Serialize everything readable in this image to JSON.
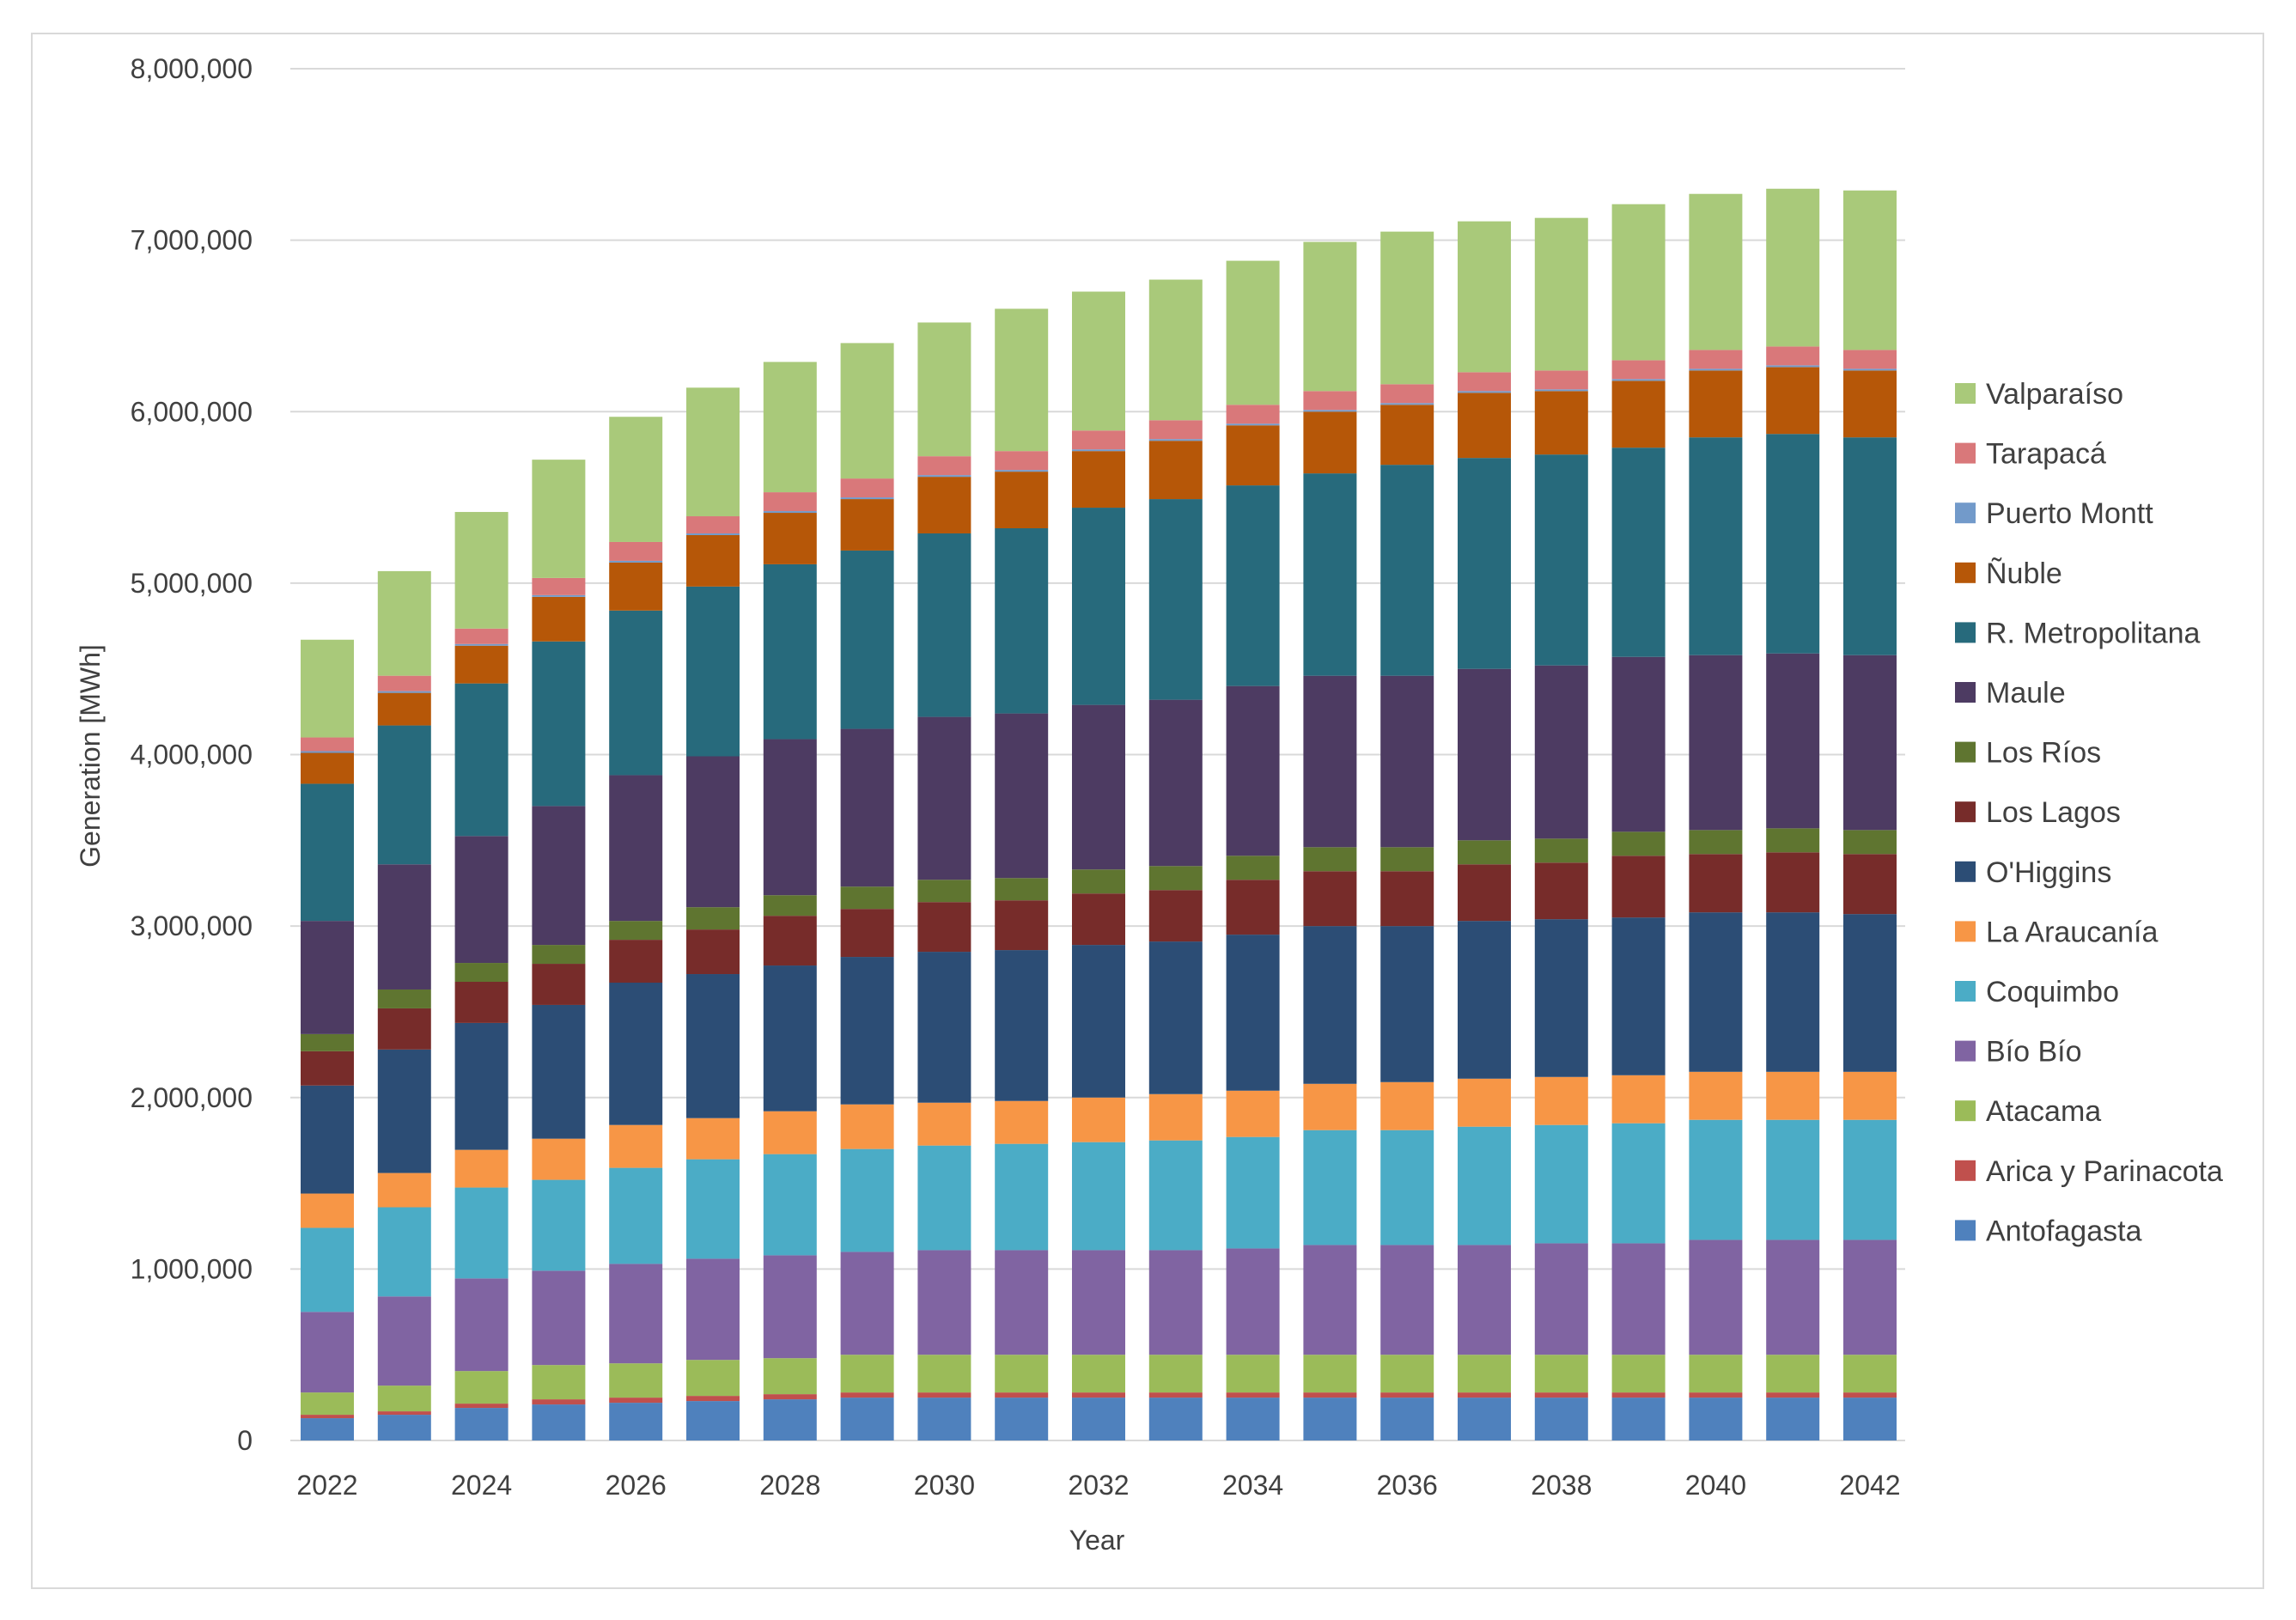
{
  "chart_data": {
    "type": "bar",
    "stacked": true,
    "title": "",
    "xlabel": "Year",
    "ylabel": "Generation [MWh]",
    "ylim": [
      0,
      8000000
    ],
    "yticks": [
      0,
      1000000,
      2000000,
      3000000,
      4000000,
      5000000,
      6000000,
      7000000,
      8000000
    ],
    "ytick_labels": [
      "0",
      "1,000,000",
      "2,000,000",
      "3,000,000",
      "4,000,000",
      "5,000,000",
      "6,000,000",
      "7,000,000",
      "8,000,000"
    ],
    "categories": [
      "2022",
      "2023",
      "2024",
      "2025",
      "2026",
      "2027",
      "2028",
      "2029",
      "2030",
      "2031",
      "2032",
      "2033",
      "2034",
      "2035",
      "2036",
      "2037",
      "2038",
      "2039",
      "2040",
      "2041",
      "2042"
    ],
    "xtick_labels": [
      "2022",
      "2024",
      "2026",
      "2028",
      "2030",
      "2032",
      "2034",
      "2036",
      "2038",
      "2040",
      "2042"
    ],
    "grid": true,
    "legend_position": "right",
    "series": [
      {
        "name": "Antofagasta",
        "color": "#4f81bd",
        "values": [
          130000,
          150000,
          190000,
          210000,
          220000,
          230000,
          240000,
          250000,
          250000,
          250000,
          250000,
          250000,
          250000,
          250000,
          250000,
          250000,
          250000,
          250000,
          250000,
          250000,
          250000
        ]
      },
      {
        "name": "Arica y Parinacota",
        "color": "#c0504d",
        "values": [
          20000,
          20000,
          25000,
          30000,
          30000,
          30000,
          30000,
          30000,
          30000,
          30000,
          30000,
          30000,
          30000,
          30000,
          30000,
          30000,
          30000,
          30000,
          30000,
          30000,
          30000
        ]
      },
      {
        "name": "Atacama",
        "color": "#9bbb59",
        "values": [
          130000,
          150000,
          190000,
          200000,
          200000,
          210000,
          210000,
          220000,
          220000,
          220000,
          220000,
          220000,
          220000,
          220000,
          220000,
          220000,
          220000,
          220000,
          220000,
          220000,
          220000
        ]
      },
      {
        "name": "Bío Bío",
        "color": "#8064a2",
        "values": [
          470000,
          520000,
          540000,
          550000,
          580000,
          590000,
          600000,
          600000,
          610000,
          610000,
          610000,
          610000,
          620000,
          640000,
          640000,
          640000,
          650000,
          650000,
          670000,
          670000,
          670000
        ]
      },
      {
        "name": "Coquimbo",
        "color": "#4bacc6",
        "values": [
          490000,
          520000,
          530000,
          530000,
          560000,
          580000,
          590000,
          600000,
          610000,
          620000,
          630000,
          640000,
          650000,
          670000,
          670000,
          690000,
          690000,
          700000,
          700000,
          700000,
          700000
        ]
      },
      {
        "name": "La Araucanía",
        "color": "#f79646",
        "values": [
          200000,
          200000,
          220000,
          240000,
          250000,
          240000,
          250000,
          260000,
          250000,
          250000,
          260000,
          270000,
          270000,
          270000,
          280000,
          280000,
          280000,
          280000,
          280000,
          280000,
          280000
        ]
      },
      {
        "name": "O'Higgins",
        "color": "#2c4d75",
        "values": [
          630000,
          720000,
          740000,
          780000,
          830000,
          840000,
          850000,
          860000,
          880000,
          880000,
          890000,
          890000,
          910000,
          920000,
          910000,
          920000,
          920000,
          920000,
          930000,
          930000,
          920000
        ]
      },
      {
        "name": "Los Lagos",
        "color": "#772c2a",
        "values": [
          200000,
          240000,
          240000,
          240000,
          250000,
          260000,
          290000,
          280000,
          290000,
          290000,
          300000,
          300000,
          320000,
          320000,
          320000,
          330000,
          330000,
          360000,
          340000,
          350000,
          350000
        ]
      },
      {
        "name": "Los Ríos",
        "color": "#5f7530",
        "values": [
          100000,
          110000,
          110000,
          110000,
          110000,
          130000,
          120000,
          130000,
          130000,
          130000,
          140000,
          140000,
          140000,
          140000,
          140000,
          140000,
          140000,
          140000,
          140000,
          140000,
          140000
        ]
      },
      {
        "name": "Maule",
        "color": "#4d3b62",
        "values": [
          660000,
          730000,
          740000,
          810000,
          850000,
          880000,
          910000,
          920000,
          950000,
          960000,
          960000,
          970000,
          990000,
          1000000,
          1000000,
          1000000,
          1010000,
          1020000,
          1020000,
          1020000,
          1020000
        ]
      },
      {
        "name": "R. Metropolitana",
        "color": "#276a7c",
        "values": [
          800000,
          810000,
          890000,
          960000,
          960000,
          990000,
          1020000,
          1040000,
          1070000,
          1080000,
          1150000,
          1170000,
          1170000,
          1180000,
          1230000,
          1230000,
          1230000,
          1220000,
          1270000,
          1280000,
          1270000
        ]
      },
      {
        "name": "Ñuble",
        "color": "#b65708",
        "values": [
          180000,
          190000,
          220000,
          260000,
          280000,
          300000,
          300000,
          300000,
          330000,
          330000,
          330000,
          340000,
          350000,
          360000,
          350000,
          380000,
          370000,
          390000,
          390000,
          390000,
          390000
        ]
      },
      {
        "name": "Puerto Montt",
        "color": "#729aca",
        "values": [
          10000,
          10000,
          10000,
          10000,
          10000,
          10000,
          10000,
          10000,
          10000,
          10000,
          10000,
          10000,
          10000,
          10000,
          10000,
          10000,
          10000,
          10000,
          10000,
          10000,
          10000
        ]
      },
      {
        "name": "Tarapacá",
        "color": "#d9787a",
        "values": [
          80000,
          90000,
          90000,
          100000,
          110000,
          100000,
          110000,
          110000,
          110000,
          110000,
          110000,
          110000,
          110000,
          110000,
          110000,
          110000,
          110000,
          110000,
          110000,
          110000,
          110000
        ]
      },
      {
        "name": "Valparaíso",
        "color": "#a9c97a",
        "values": [
          570000,
          610000,
          680000,
          690000,
          730000,
          750000,
          760000,
          790000,
          780000,
          830000,
          810000,
          820000,
          840000,
          870000,
          890000,
          880000,
          890000,
          910000,
          910000,
          920000,
          930000
        ]
      }
    ]
  }
}
